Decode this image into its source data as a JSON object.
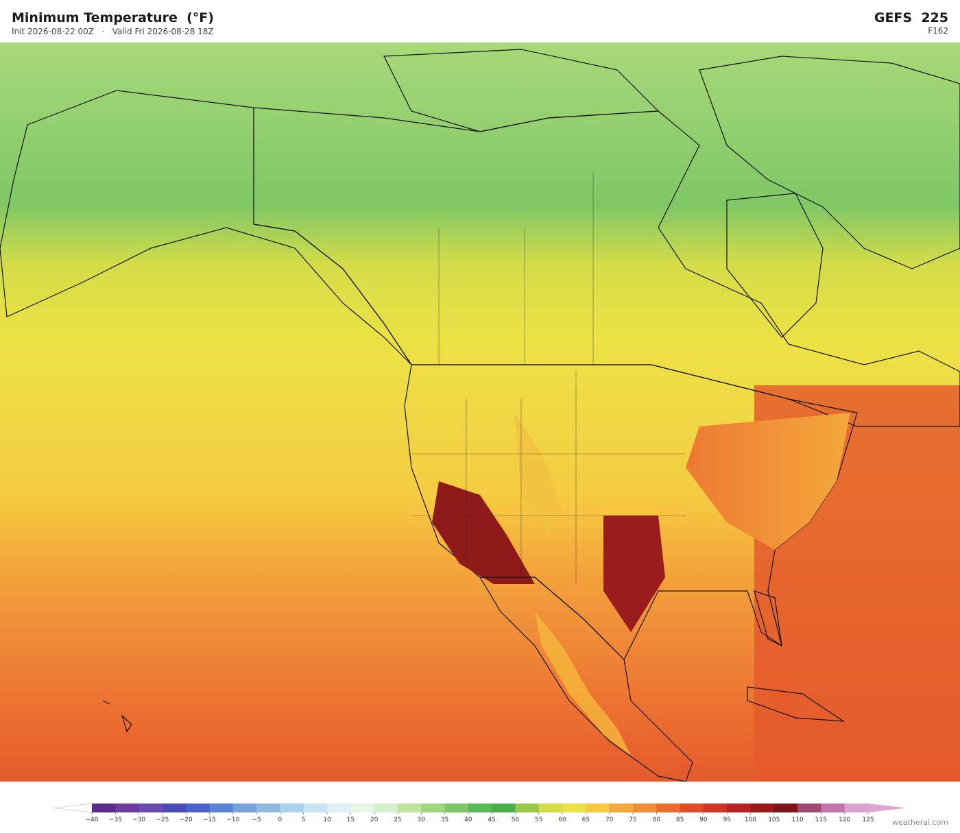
{
  "header": {
    "title": "Minimum Temperature  (°F)",
    "subtitle": "Init 2026-08-22 00Z   ·   Valid Fri 2026-08-28 18Z",
    "model": "GEFS  225",
    "forecast_hour": "F162"
  },
  "colorbar": {
    "ticks": [
      {
        "value": -40,
        "label": "−40"
      },
      {
        "value": -35,
        "label": "−35"
      },
      {
        "value": -30,
        "label": "−30"
      },
      {
        "value": -25,
        "label": "−25"
      },
      {
        "value": -20,
        "label": "−20"
      },
      {
        "value": -15,
        "label": "−15"
      },
      {
        "value": -10,
        "label": "−10"
      },
      {
        "value": -5,
        "label": "−5"
      },
      0,
      5,
      10,
      15,
      20,
      25,
      30,
      35,
      40,
      45,
      50,
      55,
      60,
      65,
      70,
      75,
      80,
      85,
      90,
      95,
      100,
      105,
      110,
      115,
      120,
      125
    ],
    "colors": [
      "#5b2a8c",
      "#6e3c9c",
      "#6a4cb0",
      "#4a4cbc",
      "#4a62cc",
      "#5c84d4",
      "#7aa2da",
      "#90bae2",
      "#aad2ec",
      "#c6e4f2",
      "#ddf1f5",
      "#e8f6ea",
      "#d6efcc",
      "#bee3a0",
      "#9fd680",
      "#7fc766",
      "#5cb858",
      "#4aac4a",
      "#9ac84a",
      "#d4dc48",
      "#ece244",
      "#f6ca40",
      "#f4a93c",
      "#f08c38",
      "#ec6c30",
      "#e04c28",
      "#d03424",
      "#b82222",
      "#9a1a1a",
      "#7e1418",
      "#a04870",
      "#c074a8",
      "#daa2cc"
    ],
    "under_color": "#ffffff",
    "over_color": "#dca6d0"
  },
  "watermark": "weatherai.com"
}
